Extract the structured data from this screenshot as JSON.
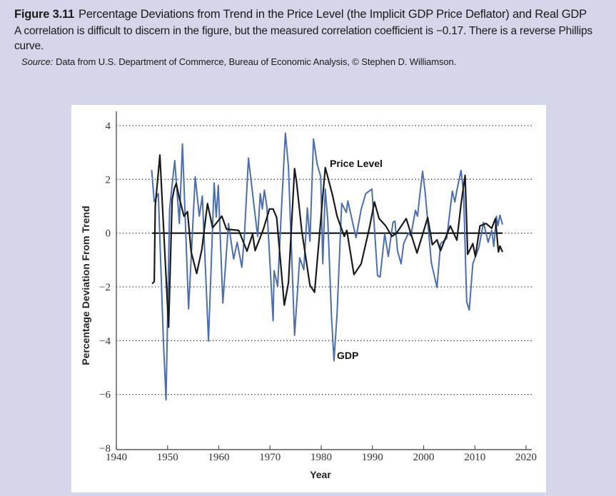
{
  "figure": {
    "number": "Figure 3.11",
    "title": "Percentage Deviations from Trend in the Price Level (the Implicit GDP Price Deflator) and Real GDP",
    "caption": "A correlation is difficult to discern in the figure, but the measured correlation coefficient is −0.17. There is a reverse Phillips curve.",
    "source_label": "Source:",
    "source_text": "Data from U.S. Department of Commerce, Bureau of Economic Analysis, © Stephen D. Williamson."
  },
  "colors": {
    "background": "#d5d6ea",
    "panel": "#ffffff",
    "price_level": "#1a1a1a",
    "gdp": "#4a6db5"
  },
  "chart_data": {
    "type": "line",
    "title": "",
    "xlabel": "Year",
    "ylabel": "Percentage Deviation From Trend",
    "xlim": [
      1940,
      2020
    ],
    "ylim": [
      -8,
      4
    ],
    "xticks": [
      "1940",
      "1950",
      "1960",
      "1970",
      "1980",
      "1990",
      "2000",
      "2010",
      "2020"
    ],
    "yticks": [
      "4",
      "2",
      "0",
      "−2",
      "−4",
      "−6",
      "−8"
    ],
    "grid": "horizontal dotted",
    "legend": "inline labels",
    "series": [
      {
        "name": "Price Level",
        "color": "#1a1a1a",
        "x": [
          1947.0,
          1947.4,
          1947.6,
          1948.5,
          1950.2,
          1950.9,
          1951.3,
          1951.7,
          1952.3,
          1953.2,
          1953.9,
          1954.6,
          1955.7,
          1956.7,
          1957.8,
          1958.8,
          1960.6,
          1961.5,
          1963.9,
          1965.5,
          1966.6,
          1967.1,
          1968.7,
          1969.9,
          1970.6,
          1971.3,
          1972.8,
          1973.6,
          1974.8,
          1975.2,
          1976.2,
          1977.8,
          1978.7,
          1980.8,
          1982.2,
          1983.1,
          1984.5,
          1985.0,
          1986.4,
          1987.8,
          1989.4,
          1990.4,
          1991.3,
          1992.6,
          1993.8,
          1994.7,
          1996.6,
          1998.7,
          2000.8,
          2001.7,
          2002.6,
          2003.3,
          2005.2,
          2006.5,
          2007.3,
          2008.1,
          2008.6,
          2009.6,
          2010.1,
          2011.0,
          2012.2,
          2013.3,
          2014.0,
          2014.6,
          2014.9,
          2015.4
        ],
        "y": [
          -1.88,
          -1.8,
          1.0,
          2.9,
          -3.5,
          1.25,
          1.65,
          1.85,
          1.3,
          0.63,
          0.8,
          -0.7,
          -1.5,
          -0.6,
          1.1,
          0.2,
          0.63,
          0.15,
          0.1,
          -0.67,
          -0.03,
          -0.65,
          0.14,
          0.9,
          0.9,
          0.58,
          -2.68,
          -1.85,
          2.4,
          1.87,
          0.1,
          -1.94,
          -2.2,
          2.44,
          1.42,
          0.63,
          -0.12,
          0.1,
          -1.54,
          -1.14,
          0.18,
          1.16,
          0.54,
          0.27,
          -0.12,
          0.0,
          0.54,
          -0.74,
          0.58,
          -0.43,
          -0.25,
          -0.65,
          0.27,
          -0.26,
          1.07,
          2.15,
          -0.79,
          -0.39,
          -0.87,
          0.27,
          0.36,
          0.18,
          0.54,
          -0.7,
          -0.48,
          -0.7
        ]
      },
      {
        "name": "GDP",
        "color": "#4a6db5",
        "x": [
          1946.9,
          1947.4,
          1948.2,
          1949.2,
          1949.7,
          1950.4,
          1951.4,
          1952.3,
          1952.9,
          1954.1,
          1955.4,
          1956.2,
          1956.8,
          1958.0,
          1959.1,
          1959.5,
          1959.9,
          1960.8,
          1961.9,
          1962.9,
          1963.6,
          1964.5,
          1965.0,
          1965.8,
          1966.9,
          1967.6,
          1968.1,
          1968.5,
          1968.9,
          1969.4,
          1970.1,
          1970.6,
          1970.8,
          1971.5,
          1972.2,
          1973.0,
          1973.6,
          1974.8,
          1975.8,
          1976.6,
          1977.3,
          1977.8,
          1978.5,
          1979.2,
          1979.9,
          1980.3,
          1980.8,
          1981.3,
          1982.0,
          1982.5,
          1983.1,
          1984.0,
          1984.9,
          1985.2,
          1986.8,
          1987.8,
          1988.7,
          1989.9,
          1991.0,
          1991.5,
          1992.4,
          1993.1,
          1994.0,
          1994.4,
          1994.9,
          1995.6,
          1996.1,
          1997.0,
          1997.5,
          1998.4,
          1998.8,
          1999.3,
          1999.8,
          2000.3,
          2001.5,
          2002.6,
          2003.3,
          2004.5,
          2005.6,
          2006.1,
          2006.5,
          2007.3,
          2007.8,
          2008.4,
          2008.9,
          2009.6,
          2010.8,
          2011.7,
          2012.6,
          2013.3,
          2013.7,
          2014.2,
          2014.5,
          2014.9,
          2015.4
        ],
        "y": [
          2.35,
          1.17,
          1.47,
          -4.06,
          -6.2,
          0.9,
          2.7,
          0.36,
          3.32,
          -2.82,
          2.09,
          0.63,
          1.38,
          -4.01,
          1.87,
          0.6,
          1.78,
          -2.6,
          0.36,
          -0.96,
          -0.34,
          -1.27,
          -0.1,
          2.79,
          0.98,
          -0.12,
          1.47,
          0.9,
          1.6,
          0.98,
          -1.5,
          -3.26,
          -1.4,
          -1.98,
          0.72,
          3.72,
          2.48,
          -3.8,
          -0.92,
          -1.36,
          0.94,
          -0.3,
          3.5,
          2.57,
          2.1,
          -1.14,
          1.64,
          0.45,
          -3.09,
          -4.75,
          -3.0,
          1.11,
          0.77,
          1.2,
          -0.17,
          0.89,
          1.47,
          1.64,
          -1.58,
          -1.63,
          -0.03,
          -0.87,
          0.4,
          0.45,
          -0.66,
          -1.14,
          -0.39,
          0.0,
          -0.1,
          0.85,
          0.63,
          1.5,
          2.3,
          1.5,
          -1.1,
          -2.02,
          -0.39,
          -0.2,
          1.56,
          1.16,
          1.6,
          2.33,
          1.5,
          -2.55,
          -2.86,
          -1.14,
          -0.52,
          0.4,
          -0.34,
          0.1,
          -0.49,
          0.63,
          0.27,
          0.67,
          0.32
        ]
      }
    ]
  }
}
